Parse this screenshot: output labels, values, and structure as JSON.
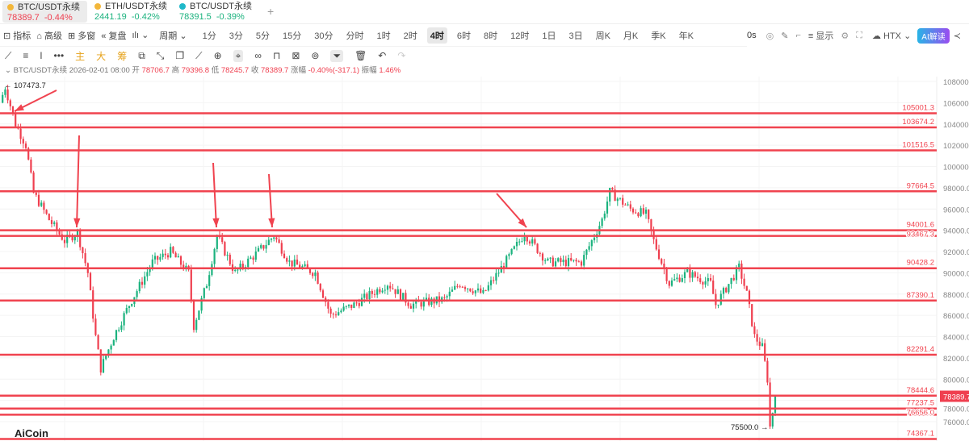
{
  "tabs": [
    {
      "symbol": "BTC/USDT永续",
      "price": "78389.7",
      "change": "-0.44%",
      "dir": "down",
      "coin_color": "#f3b73a",
      "active": true
    },
    {
      "symbol": "ETH/USDT永续",
      "price": "2441.19",
      "change": "-0.42%",
      "dir": "up",
      "coin_color": "#f3b73a",
      "active": false
    },
    {
      "symbol": "BTC/USDT永续",
      "price": "78391.5",
      "change": "-0.39%",
      "dir": "up",
      "coin_color": "#1fb8c9",
      "active": false
    }
  ],
  "add_tab": "+",
  "toolbar": {
    "indicators": "指标",
    "advanced": "高级",
    "multi_window": "多窗",
    "replay": "复盘",
    "chart_type": "ılı ⌄",
    "period": "周期 ⌄",
    "periods": [
      "1分",
      "3分",
      "5分",
      "15分",
      "30分",
      "分时",
      "1时",
      "2时",
      "4时",
      "6时",
      "8时",
      "12时",
      "1日",
      "3日",
      "周K",
      "月K",
      "季K",
      "年K"
    ],
    "selected_period": "4时",
    "countdown": "0s",
    "display": "显示",
    "exchange": "HTX ⌄",
    "ai_button": "AI解读"
  },
  "drawing_tools": {
    "main": "主",
    "big": "大",
    "chips": "筹"
  },
  "info_bar": {
    "symbol": "BTC/USDT永续",
    "datetime": "2026-02-01 08:00",
    "open_label": "开",
    "open": "78706.7",
    "high_label": "高",
    "high": "79396.8",
    "low_label": "低",
    "low": "78245.7",
    "close_label": "收",
    "close": "78389.7",
    "change_label": "涨幅",
    "change": "-0.40%(-317.1)",
    "amplitude_label": "振幅",
    "amplitude": "1.46%"
  },
  "chart_data": {
    "type": "candlestick",
    "y_ticks": [
      108000,
      106000,
      104000,
      102000,
      100000,
      98000,
      96000,
      94000,
      92000,
      90000,
      88000,
      86000,
      84000,
      82000,
      80000,
      78000,
      76000
    ],
    "y_tick_labels": [
      "108000.0",
      "106000.0",
      "104000.0",
      "102000.0",
      "100000.0",
      "98000.0",
      "96000.0",
      "94000.0",
      "92000.0",
      "90000.0",
      "88000.0",
      "86000.0",
      "84000.0",
      "82000.0",
      "80000.0",
      "78000.0",
      "76000.0"
    ],
    "price_path": [
      [
        0,
        106000
      ],
      [
        2,
        107473.7
      ],
      [
        6,
        104000
      ],
      [
        10,
        102000
      ],
      [
        13,
        97500
      ],
      [
        19,
        95000
      ],
      [
        25,
        93000
      ],
      [
        30,
        93800
      ],
      [
        34,
        90000
      ],
      [
        37,
        84000
      ],
      [
        39,
        81000
      ],
      [
        44,
        84000
      ],
      [
        50,
        87000
      ],
      [
        59,
        91000
      ],
      [
        66,
        92000
      ],
      [
        73,
        90000
      ],
      [
        75,
        85000
      ],
      [
        80,
        89000
      ],
      [
        84,
        93500
      ],
      [
        91,
        90000
      ],
      [
        100,
        92000
      ],
      [
        106,
        93500
      ],
      [
        112,
        91000
      ],
      [
        122,
        90000
      ],
      [
        128,
        86000
      ],
      [
        137,
        87000
      ],
      [
        150,
        89000
      ],
      [
        159,
        87000
      ],
      [
        172,
        87500
      ],
      [
        178,
        89000
      ],
      [
        187,
        88000
      ],
      [
        197,
        91500
      ],
      [
        203,
        93700
      ],
      [
        212,
        91000
      ],
      [
        225,
        91000
      ],
      [
        233,
        95000
      ],
      [
        236,
        97600
      ],
      [
        244,
        96000
      ],
      [
        250,
        95500
      ],
      [
        253,
        93000
      ],
      [
        259,
        89000
      ],
      [
        266,
        90000
      ],
      [
        275,
        89000
      ],
      [
        277,
        87000
      ],
      [
        286,
        90500
      ],
      [
        289,
        88000
      ],
      [
        292,
        84000
      ],
      [
        295,
        83000
      ],
      [
        297,
        80000
      ],
      [
        298,
        75500
      ],
      [
        300,
        78389.7
      ]
    ],
    "high_marker": "← 107473.7",
    "low_marker": "75500.0 →",
    "current_price": "78389.7",
    "levels": [
      {
        "price": 105001.3,
        "label": "105001.3"
      },
      {
        "price": 103674.2,
        "label": "103674.2"
      },
      {
        "price": 101516.5,
        "label": "101516.5"
      },
      {
        "price": 97664.5,
        "label": "97664.5"
      },
      {
        "price": 94001.6,
        "label": "94001.6"
      },
      {
        "price": 93467.3,
        "label": "93467.3"
      },
      {
        "price": 90428.2,
        "label": "90428.2"
      },
      {
        "price": 87390.1,
        "label": "87390.1"
      },
      {
        "price": 82291.4,
        "label": "82291.4"
      },
      {
        "price": 78444.6,
        "label": "78444.6"
      },
      {
        "price": 77237.5,
        "label": "77237.5"
      },
      {
        "price": 76656.0,
        "label": "76656.0"
      },
      {
        "price": 74367.1,
        "label": "74367.1"
      }
    ],
    "up_color": "#1bb27e",
    "down_color": "#ef3f4f",
    "level_color": "#f0434f"
  },
  "watermark": "AiCoin"
}
